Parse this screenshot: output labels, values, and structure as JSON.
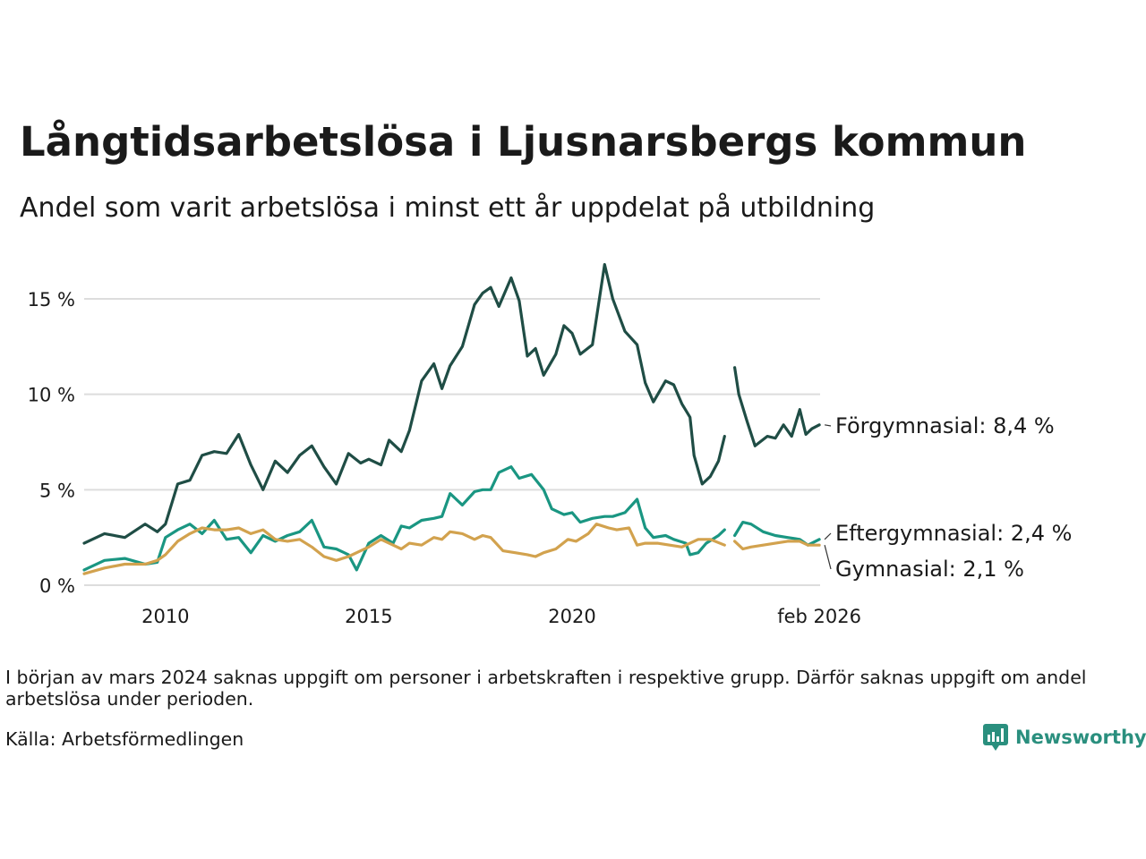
{
  "header": {
    "title": "Långtidsarbetslösa i Ljusnarsbergs kommun",
    "subtitle": "Andel som varit arbetslösa i minst ett år uppdelat på utbildning"
  },
  "footer": {
    "note": "I början av mars 2024 saknas uppgift om personer i arbetskraften i respektive grupp. Därför saknas uppgift om andel arbetslösa under perioden.",
    "source": "Källa: Arbetsförmedlingen",
    "brand": "Newsworthy"
  },
  "colors": {
    "forgymnasial": "#1f4d45",
    "eftergymnasial": "#1a9682",
    "gymnasial": "#d2a24e",
    "grid": "#dddddd",
    "brand": "#2a8f7e"
  },
  "chart_data": {
    "type": "line",
    "title": "Långtidsarbetslösa i Ljusnarsbergs kommun",
    "xlabel": "",
    "ylabel": "",
    "xlim": [
      2008.0,
      2026.1
    ],
    "ylim": [
      0,
      17
    ],
    "x_ticks": [
      {
        "value": 2010,
        "label": "2010"
      },
      {
        "value": 2015,
        "label": "2015"
      },
      {
        "value": 2020,
        "label": "2020"
      },
      {
        "value": 2026.08,
        "label": "feb 2026"
      }
    ],
    "y_ticks": [
      {
        "value": 0,
        "label": "0 %"
      },
      {
        "value": 5,
        "label": "5 %"
      },
      {
        "value": 10,
        "label": "10 %"
      },
      {
        "value": 15,
        "label": "15 %"
      }
    ],
    "gap": [
      2023.75,
      2024.0
    ],
    "series": [
      {
        "name": "Förgymnasial",
        "label": "Förgymnasial: 8,4 %",
        "color_key": "forgymnasial",
        "points": [
          [
            2008.0,
            2.2
          ],
          [
            2008.5,
            2.7
          ],
          [
            2009.0,
            2.5
          ],
          [
            2009.5,
            3.2
          ],
          [
            2009.8,
            2.8
          ],
          [
            2010.0,
            3.2
          ],
          [
            2010.3,
            5.3
          ],
          [
            2010.6,
            5.5
          ],
          [
            2010.9,
            6.8
          ],
          [
            2011.2,
            7.0
          ],
          [
            2011.5,
            6.9
          ],
          [
            2011.8,
            7.9
          ],
          [
            2012.1,
            6.3
          ],
          [
            2012.4,
            5.0
          ],
          [
            2012.7,
            6.5
          ],
          [
            2013.0,
            5.9
          ],
          [
            2013.3,
            6.8
          ],
          [
            2013.6,
            7.3
          ],
          [
            2013.9,
            6.2
          ],
          [
            2014.2,
            5.3
          ],
          [
            2014.5,
            6.9
          ],
          [
            2014.8,
            6.4
          ],
          [
            2015.0,
            6.6
          ],
          [
            2015.3,
            6.3
          ],
          [
            2015.5,
            7.6
          ],
          [
            2015.8,
            7.0
          ],
          [
            2016.0,
            8.1
          ],
          [
            2016.3,
            10.7
          ],
          [
            2016.6,
            11.6
          ],
          [
            2016.8,
            10.3
          ],
          [
            2017.0,
            11.5
          ],
          [
            2017.3,
            12.5
          ],
          [
            2017.6,
            14.7
          ],
          [
            2017.8,
            15.3
          ],
          [
            2018.0,
            15.6
          ],
          [
            2018.2,
            14.6
          ],
          [
            2018.5,
            16.1
          ],
          [
            2018.7,
            14.9
          ],
          [
            2018.9,
            12.0
          ],
          [
            2019.1,
            12.4
          ],
          [
            2019.3,
            11.0
          ],
          [
            2019.6,
            12.1
          ],
          [
            2019.8,
            13.6
          ],
          [
            2020.0,
            13.2
          ],
          [
            2020.2,
            12.1
          ],
          [
            2020.5,
            12.6
          ],
          [
            2020.8,
            16.8
          ],
          [
            2021.0,
            15.0
          ],
          [
            2021.3,
            13.3
          ],
          [
            2021.6,
            12.6
          ],
          [
            2021.8,
            10.6
          ],
          [
            2022.0,
            9.6
          ],
          [
            2022.3,
            10.7
          ],
          [
            2022.5,
            10.5
          ],
          [
            2022.7,
            9.5
          ],
          [
            2022.9,
            8.8
          ],
          [
            2023.0,
            6.8
          ],
          [
            2023.2,
            5.3
          ],
          [
            2023.4,
            5.7
          ],
          [
            2023.6,
            6.5
          ],
          [
            2023.75,
            7.8
          ],
          [
            2024.0,
            11.4
          ],
          [
            2024.1,
            10.0
          ],
          [
            2024.3,
            8.6
          ],
          [
            2024.5,
            7.3
          ],
          [
            2024.8,
            7.8
          ],
          [
            2025.0,
            7.7
          ],
          [
            2025.2,
            8.4
          ],
          [
            2025.4,
            7.8
          ],
          [
            2025.6,
            9.2
          ],
          [
            2025.75,
            7.9
          ],
          [
            2025.9,
            8.2
          ],
          [
            2026.08,
            8.4
          ]
        ]
      },
      {
        "name": "Eftergymnasial",
        "label": "Eftergymnasial: 2,4 %",
        "color_key": "eftergymnasial",
        "points": [
          [
            2008.0,
            0.8
          ],
          [
            2008.5,
            1.3
          ],
          [
            2009.0,
            1.4
          ],
          [
            2009.5,
            1.1
          ],
          [
            2009.8,
            1.2
          ],
          [
            2010.0,
            2.5
          ],
          [
            2010.3,
            2.9
          ],
          [
            2010.6,
            3.2
          ],
          [
            2010.9,
            2.7
          ],
          [
            2011.2,
            3.4
          ],
          [
            2011.5,
            2.4
          ],
          [
            2011.8,
            2.5
          ],
          [
            2012.1,
            1.7
          ],
          [
            2012.4,
            2.6
          ],
          [
            2012.7,
            2.3
          ],
          [
            2013.0,
            2.6
          ],
          [
            2013.3,
            2.8
          ],
          [
            2013.6,
            3.4
          ],
          [
            2013.9,
            2.0
          ],
          [
            2014.2,
            1.9
          ],
          [
            2014.5,
            1.6
          ],
          [
            2014.7,
            0.8
          ],
          [
            2015.0,
            2.2
          ],
          [
            2015.3,
            2.6
          ],
          [
            2015.6,
            2.2
          ],
          [
            2015.8,
            3.1
          ],
          [
            2016.0,
            3.0
          ],
          [
            2016.3,
            3.4
          ],
          [
            2016.6,
            3.5
          ],
          [
            2016.8,
            3.6
          ],
          [
            2017.0,
            4.8
          ],
          [
            2017.3,
            4.2
          ],
          [
            2017.6,
            4.9
          ],
          [
            2017.8,
            5.0
          ],
          [
            2018.0,
            5.0
          ],
          [
            2018.2,
            5.9
          ],
          [
            2018.5,
            6.2
          ],
          [
            2018.7,
            5.6
          ],
          [
            2019.0,
            5.8
          ],
          [
            2019.3,
            5.0
          ],
          [
            2019.5,
            4.0
          ],
          [
            2019.8,
            3.7
          ],
          [
            2020.0,
            3.8
          ],
          [
            2020.2,
            3.3
          ],
          [
            2020.5,
            3.5
          ],
          [
            2020.8,
            3.6
          ],
          [
            2021.0,
            3.6
          ],
          [
            2021.3,
            3.8
          ],
          [
            2021.6,
            4.5
          ],
          [
            2021.8,
            3.0
          ],
          [
            2022.0,
            2.5
          ],
          [
            2022.3,
            2.6
          ],
          [
            2022.5,
            2.4
          ],
          [
            2022.8,
            2.2
          ],
          [
            2022.9,
            1.6
          ],
          [
            2023.1,
            1.7
          ],
          [
            2023.3,
            2.2
          ],
          [
            2023.6,
            2.6
          ],
          [
            2023.75,
            2.9
          ],
          [
            2024.0,
            2.6
          ],
          [
            2024.2,
            3.3
          ],
          [
            2024.4,
            3.2
          ],
          [
            2024.7,
            2.8
          ],
          [
            2025.0,
            2.6
          ],
          [
            2025.3,
            2.5
          ],
          [
            2025.6,
            2.4
          ],
          [
            2025.8,
            2.1
          ],
          [
            2026.08,
            2.4
          ]
        ]
      },
      {
        "name": "Gymnasial",
        "label": "Gymnasial: 2,1 %",
        "color_key": "gymnasial",
        "points": [
          [
            2008.0,
            0.6
          ],
          [
            2008.5,
            0.9
          ],
          [
            2009.0,
            1.1
          ],
          [
            2009.5,
            1.1
          ],
          [
            2009.8,
            1.3
          ],
          [
            2010.0,
            1.6
          ],
          [
            2010.3,
            2.3
          ],
          [
            2010.6,
            2.7
          ],
          [
            2010.9,
            3.0
          ],
          [
            2011.2,
            2.9
          ],
          [
            2011.5,
            2.9
          ],
          [
            2011.8,
            3.0
          ],
          [
            2012.1,
            2.7
          ],
          [
            2012.4,
            2.9
          ],
          [
            2012.7,
            2.4
          ],
          [
            2013.0,
            2.3
          ],
          [
            2013.3,
            2.4
          ],
          [
            2013.6,
            2.0
          ],
          [
            2013.9,
            1.5
          ],
          [
            2014.2,
            1.3
          ],
          [
            2014.5,
            1.5
          ],
          [
            2014.8,
            1.8
          ],
          [
            2015.0,
            2.0
          ],
          [
            2015.3,
            2.4
          ],
          [
            2015.6,
            2.1
          ],
          [
            2015.8,
            1.9
          ],
          [
            2016.0,
            2.2
          ],
          [
            2016.3,
            2.1
          ],
          [
            2016.6,
            2.5
          ],
          [
            2016.8,
            2.4
          ],
          [
            2017.0,
            2.8
          ],
          [
            2017.3,
            2.7
          ],
          [
            2017.6,
            2.4
          ],
          [
            2017.8,
            2.6
          ],
          [
            2018.0,
            2.5
          ],
          [
            2018.3,
            1.8
          ],
          [
            2018.6,
            1.7
          ],
          [
            2018.9,
            1.6
          ],
          [
            2019.1,
            1.5
          ],
          [
            2019.3,
            1.7
          ],
          [
            2019.6,
            1.9
          ],
          [
            2019.9,
            2.4
          ],
          [
            2020.1,
            2.3
          ],
          [
            2020.4,
            2.7
          ],
          [
            2020.6,
            3.2
          ],
          [
            2020.9,
            3.0
          ],
          [
            2021.1,
            2.9
          ],
          [
            2021.4,
            3.0
          ],
          [
            2021.6,
            2.1
          ],
          [
            2021.8,
            2.2
          ],
          [
            2022.1,
            2.2
          ],
          [
            2022.4,
            2.1
          ],
          [
            2022.7,
            2.0
          ],
          [
            2022.9,
            2.2
          ],
          [
            2023.1,
            2.4
          ],
          [
            2023.4,
            2.4
          ],
          [
            2023.75,
            2.1
          ],
          [
            2024.0,
            2.3
          ],
          [
            2024.2,
            1.9
          ],
          [
            2024.4,
            2.0
          ],
          [
            2024.7,
            2.1
          ],
          [
            2025.0,
            2.2
          ],
          [
            2025.3,
            2.3
          ],
          [
            2025.6,
            2.3
          ],
          [
            2025.8,
            2.1
          ],
          [
            2026.08,
            2.1
          ]
        ]
      }
    ]
  }
}
